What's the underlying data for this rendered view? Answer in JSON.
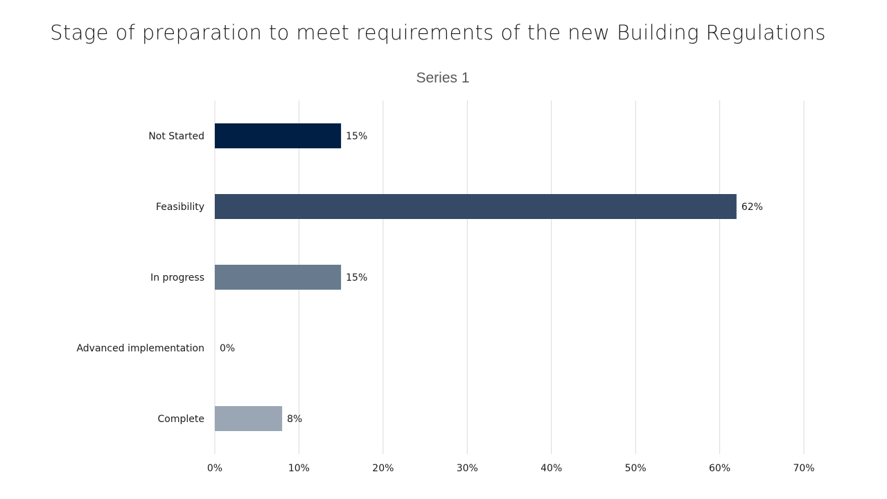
{
  "slide": {
    "title": "Stage of preparation to meet requirements of the new Building Regulations"
  },
  "chart_data": {
    "type": "bar",
    "orientation": "horizontal",
    "title": "Series 1",
    "categories": [
      "Not Started",
      "Feasibility",
      "In progress",
      "Advanced implementation",
      "Complete"
    ],
    "values": [
      15,
      62,
      15,
      0,
      8
    ],
    "value_labels": [
      "15%",
      "62%",
      "15%",
      "0%",
      "8%"
    ],
    "bar_colors": [
      "#001f45",
      "#354a66",
      "#687a8e",
      "#7d8c9e",
      "#9aa6b3"
    ],
    "xlim": [
      0,
      70
    ],
    "xticks": [
      0,
      10,
      20,
      30,
      40,
      50,
      60,
      70
    ],
    "xtick_labels": [
      "0%",
      "10%",
      "20%",
      "30%",
      "40%",
      "50%",
      "60%",
      "70%"
    ],
    "grid": "vertical",
    "legend": "none"
  }
}
